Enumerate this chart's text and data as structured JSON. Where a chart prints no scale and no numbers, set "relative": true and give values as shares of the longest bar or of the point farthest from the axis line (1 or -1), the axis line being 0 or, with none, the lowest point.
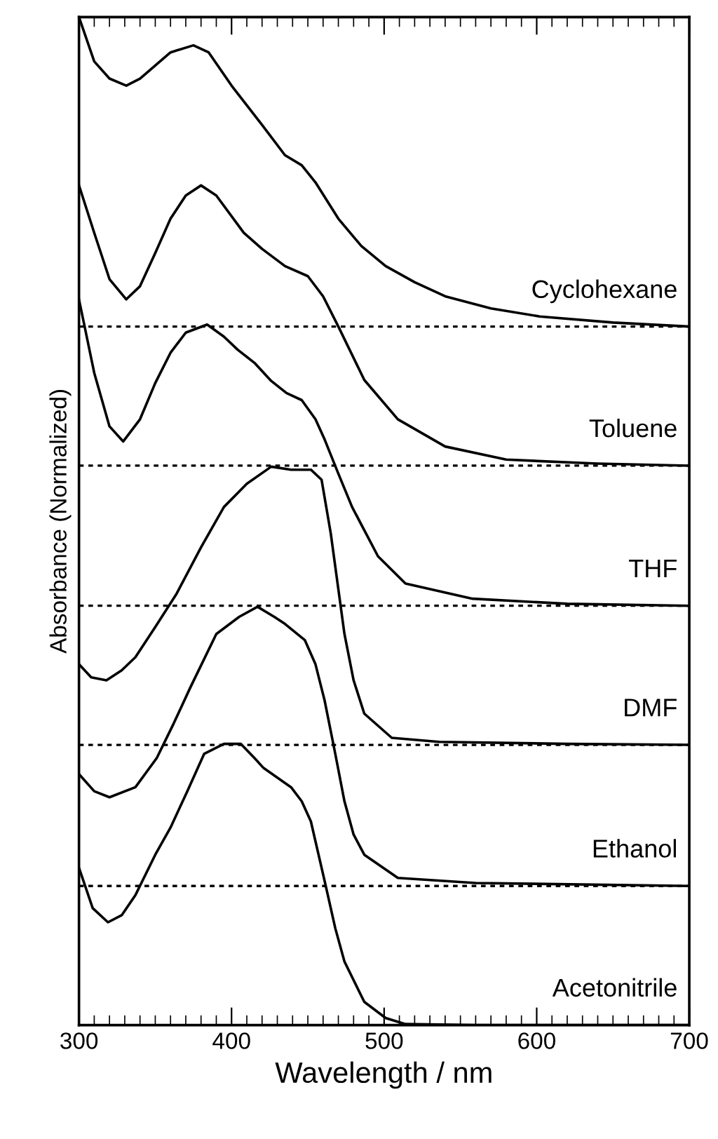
{
  "chart_data": {
    "type": "line",
    "relative": true,
    "xlabel": "Wavelength / nm",
    "ylabel": "Absorbance (Normalized)",
    "xlim": [
      300,
      700
    ],
    "xticks": [
      300,
      {
        "value": 310,
        "label": null
      },
      {
        "value": 320,
        "label": null
      },
      {
        "value": 330,
        "label": null
      },
      {
        "value": 340,
        "label": null
      },
      {
        "value": 350,
        "label": null
      },
      {
        "value": 360,
        "label": null
      },
      {
        "value": 370,
        "label": null
      },
      {
        "value": 380,
        "label": null
      },
      {
        "value": 390,
        "label": null
      },
      400,
      {
        "value": 410,
        "label": null
      },
      {
        "value": 420,
        "label": null
      },
      {
        "value": 430,
        "label": null
      },
      {
        "value": 440,
        "label": null
      },
      {
        "value": 450,
        "label": null
      },
      {
        "value": 460,
        "label": null
      },
      {
        "value": 470,
        "label": null
      },
      {
        "value": 480,
        "label": null
      },
      {
        "value": 490,
        "label": null
      },
      500,
      {
        "value": 510,
        "label": null
      },
      {
        "value": 520,
        "label": null
      },
      {
        "value": 530,
        "label": null
      },
      {
        "value": 540,
        "label": null
      },
      {
        "value": 550,
        "label": null
      },
      {
        "value": 560,
        "label": null
      },
      {
        "value": 570,
        "label": null
      },
      {
        "value": 580,
        "label": null
      },
      {
        "value": 590,
        "label": null
      },
      600,
      {
        "value": 610,
        "label": null
      },
      {
        "value": 620,
        "label": null
      },
      {
        "value": 630,
        "label": null
      },
      {
        "value": 640,
        "label": null
      },
      {
        "value": 650,
        "label": null
      },
      {
        "value": 660,
        "label": null
      },
      {
        "value": 670,
        "label": null
      },
      {
        "value": 680,
        "label": null
      },
      {
        "value": 690,
        "label": null
      },
      700
    ],
    "grid": false,
    "legend": false,
    "marker": "none",
    "line_style": "solid",
    "series": [
      {
        "name": "Cyclohexane",
        "color": "#000000",
        "x": [
          300,
          310,
          320,
          331,
          340,
          350,
          360,
          375,
          385,
          400,
          420,
          435,
          446,
          455,
          470,
          485,
          501,
          520,
          540,
          570,
          602,
          650,
          700
        ],
        "values": [
          1.0,
          0.956,
          0.939,
          0.932,
          0.939,
          0.952,
          0.965,
          0.972,
          0.965,
          0.932,
          0.893,
          0.863,
          0.853,
          0.836,
          0.8,
          0.773,
          0.753,
          0.737,
          0.723,
          0.711,
          0.703,
          0.697,
          0.693
        ]
      },
      {
        "name": "Toluene",
        "color": "#000000",
        "x": [
          300,
          310,
          320,
          331,
          340,
          350,
          360,
          370,
          380,
          390,
          408,
          420,
          435,
          450,
          460,
          470,
          487,
          509,
          540,
          580,
          640,
          700
        ],
        "values": [
          0.833,
          0.786,
          0.74,
          0.72,
          0.733,
          0.766,
          0.8,
          0.823,
          0.833,
          0.823,
          0.786,
          0.77,
          0.753,
          0.743,
          0.723,
          0.693,
          0.64,
          0.601,
          0.574,
          0.561,
          0.557,
          0.555
        ]
      },
      {
        "name": "THF",
        "color": "#000000",
        "x": [
          300,
          310,
          320,
          329,
          340,
          350,
          360,
          370,
          384,
          395,
          404,
          415,
          426,
          436,
          446,
          455,
          461,
          470,
          479,
          496,
          514,
          558,
          620,
          700
        ],
        "values": [
          0.72,
          0.647,
          0.594,
          0.579,
          0.601,
          0.637,
          0.667,
          0.687,
          0.695,
          0.683,
          0.67,
          0.657,
          0.639,
          0.627,
          0.62,
          0.601,
          0.581,
          0.547,
          0.514,
          0.465,
          0.438,
          0.423,
          0.418,
          0.416
        ]
      },
      {
        "name": "DMF",
        "color": "#000000",
        "x": [
          300,
          308,
          318,
          328,
          337,
          350,
          364,
          380,
          395,
          410,
          426,
          439,
          452,
          459,
          465,
          474,
          480,
          487,
          505,
          536,
          620,
          700
        ],
        "values": [
          0.358,
          0.345,
          0.342,
          0.352,
          0.365,
          0.395,
          0.428,
          0.474,
          0.514,
          0.537,
          0.554,
          0.551,
          0.551,
          0.541,
          0.488,
          0.388,
          0.342,
          0.309,
          0.285,
          0.281,
          0.279,
          0.278
        ]
      },
      {
        "name": "Ethanol",
        "color": "#000000",
        "x": [
          300,
          310,
          320,
          337,
          351,
          362,
          373,
          390,
          405,
          417,
          428,
          435,
          448,
          455,
          461,
          468,
          474,
          480,
          487,
          509,
          560,
          700
        ],
        "values": [
          0.249,
          0.232,
          0.226,
          0.236,
          0.265,
          0.299,
          0.335,
          0.388,
          0.405,
          0.415,
          0.405,
          0.398,
          0.382,
          0.358,
          0.322,
          0.269,
          0.222,
          0.189,
          0.169,
          0.146,
          0.141,
          0.138
        ]
      },
      {
        "name": "Acetonitrile",
        "color": "#000000",
        "x": [
          300,
          309,
          319,
          328,
          337,
          350,
          360,
          371,
          382,
          395,
          406,
          415,
          421,
          439,
          446,
          452,
          461,
          468,
          474,
          487,
          501,
          514,
          560,
          700
        ],
        "values": [
          0.156,
          0.116,
          0.102,
          0.109,
          0.129,
          0.169,
          0.196,
          0.232,
          0.269,
          0.279,
          0.279,
          0.265,
          0.255,
          0.236,
          0.222,
          0.202,
          0.143,
          0.096,
          0.063,
          0.023,
          0.007,
          0.001,
          0.0,
          0.0
        ]
      }
    ],
    "ref_lines": [
      {
        "axis": "y",
        "value": 0.693,
        "color": "#000000",
        "line_style": "dotted"
      },
      {
        "axis": "y",
        "value": 0.555,
        "color": "#000000",
        "line_style": "dotted"
      },
      {
        "axis": "y",
        "value": 0.416,
        "color": "#000000",
        "line_style": "dotted"
      },
      {
        "axis": "y",
        "value": 0.278,
        "color": "#000000",
        "line_style": "dotted"
      },
      {
        "axis": "y",
        "value": 0.138,
        "color": "#000000",
        "line_style": "dotted"
      }
    ]
  }
}
